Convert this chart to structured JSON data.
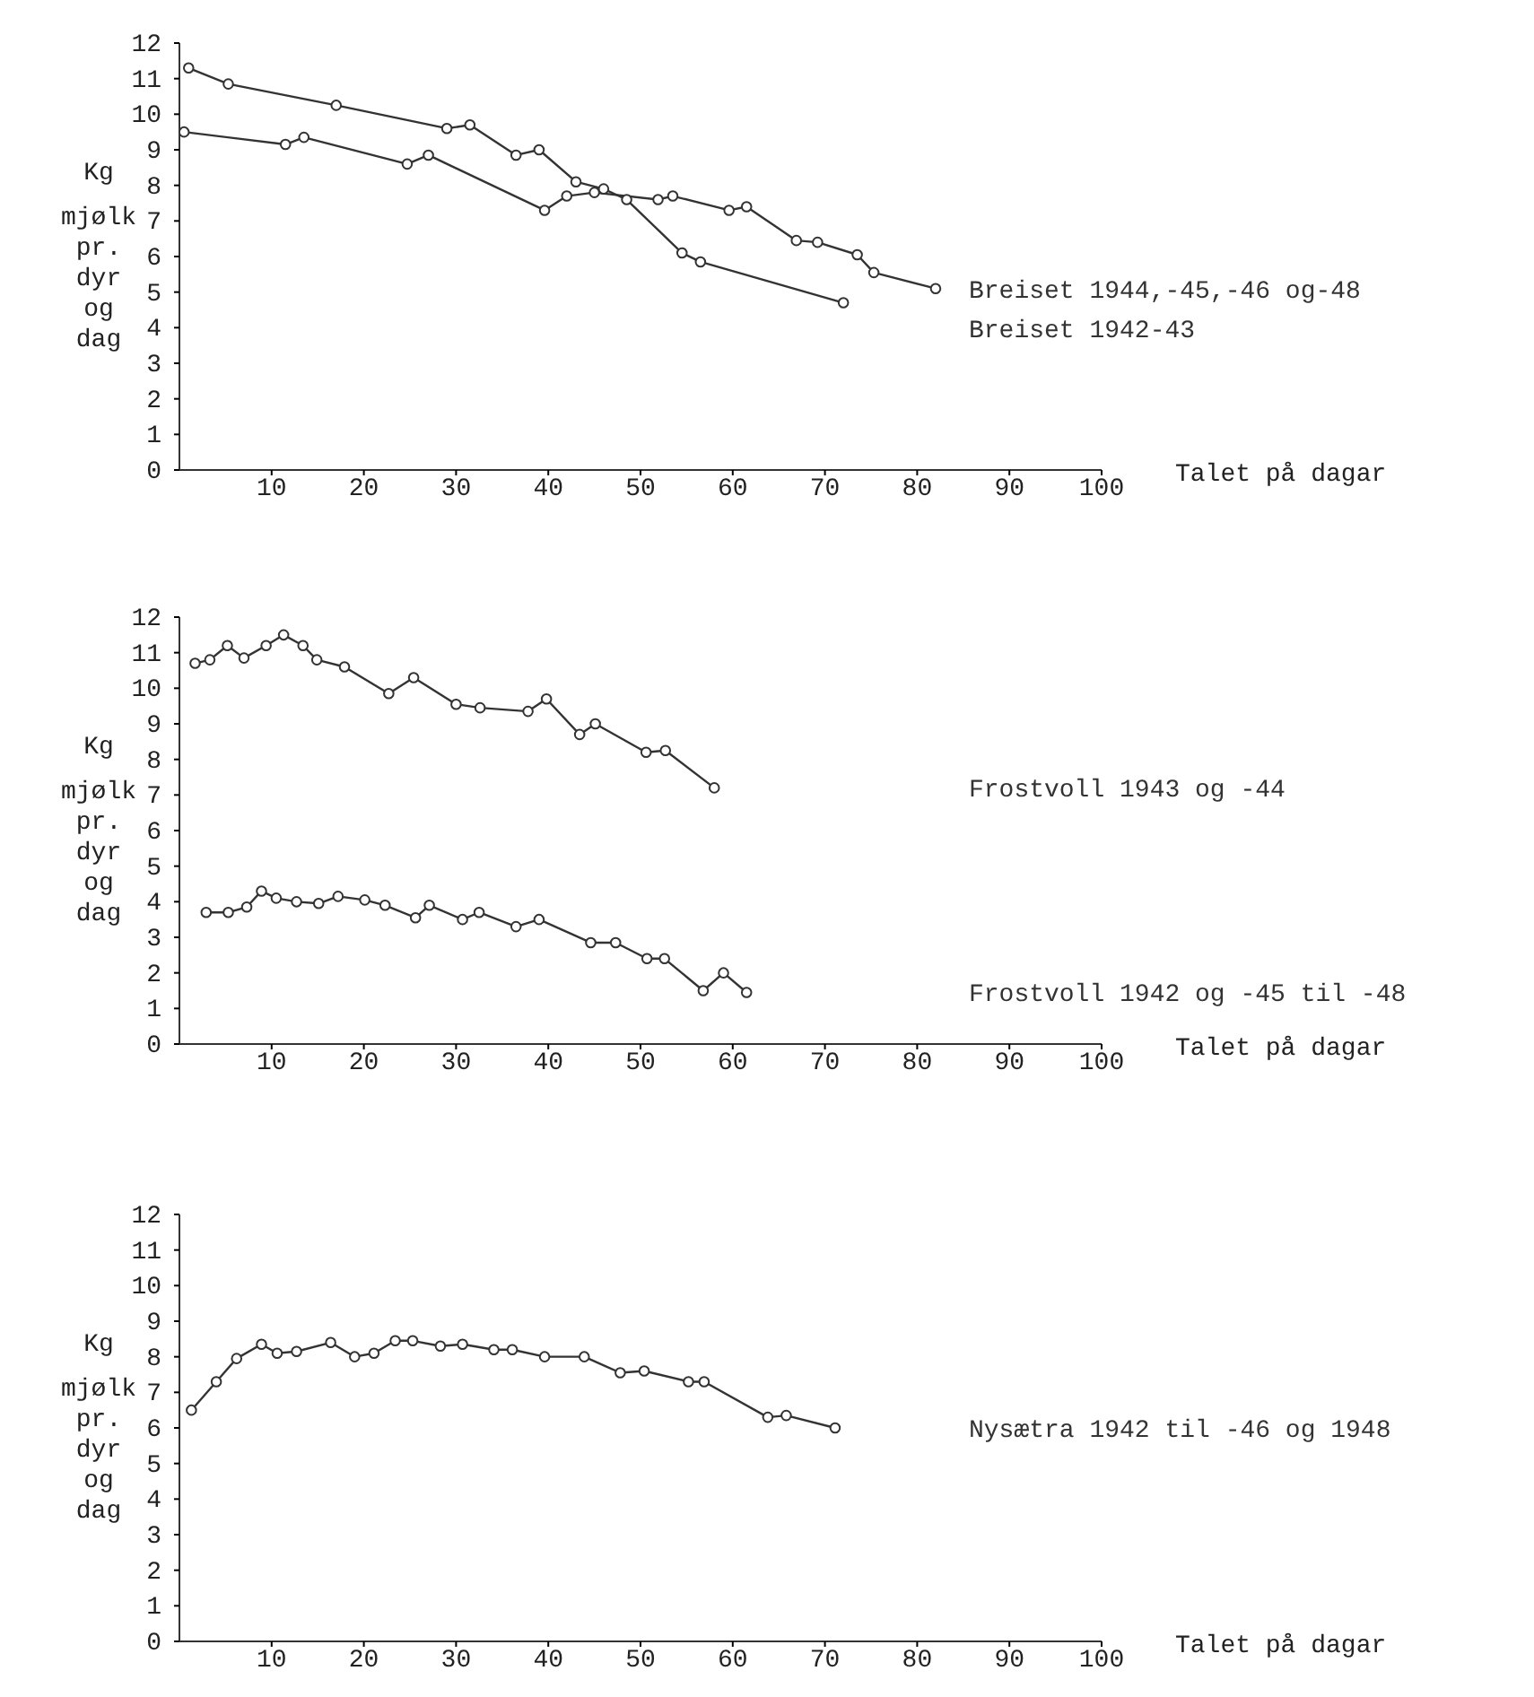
{
  "chart_data": [
    {
      "type": "line",
      "ylabel": "Kg mjølk pr. dyr og dag",
      "xlabel": "Talet på dagar",
      "xlim": [
        0,
        100
      ],
      "xticks": [
        10,
        20,
        30,
        40,
        50,
        60,
        70,
        80,
        90,
        100
      ],
      "ylim": [
        0,
        12
      ],
      "yticks": [
        0,
        1,
        2,
        3,
        4,
        5,
        6,
        7,
        8,
        9,
        10,
        11,
        12
      ],
      "grid": false,
      "legend": false,
      "marker": "circle",
      "line_style": "solid",
      "series": [
        {
          "name": "Breiset 1944,-45,-46 og-48",
          "color": "#333333",
          "x": [
            0.5,
            11.5,
            13.5,
            24.7,
            27,
            39.6,
            42,
            45,
            51.9,
            53.5,
            59.6,
            61.5,
            66.9,
            69.2,
            73.5,
            75.3,
            82
          ],
          "values": [
            9.5,
            9.15,
            9.35,
            8.6,
            8.85,
            7.3,
            7.7,
            7.8,
            7.6,
            7.7,
            7.3,
            7.4,
            6.45,
            6.4,
            6.05,
            5.55,
            5.1
          ]
        },
        {
          "name": "Breiset 1942-43",
          "color": "#333333",
          "x": [
            1,
            5.3,
            17,
            29,
            31.5,
            36.5,
            39,
            43,
            46,
            48.5,
            54.5,
            56.5,
            72
          ],
          "values": [
            11.3,
            10.85,
            10.25,
            9.6,
            9.7,
            8.85,
            9.0,
            8.1,
            7.9,
            7.6,
            6.1,
            5.85,
            4.7
          ]
        }
      ]
    },
    {
      "type": "line",
      "ylabel": "Kg mjølk pr. dyr og dag",
      "xlabel": "Talet på dagar",
      "xlim": [
        0,
        100
      ],
      "xticks": [
        10,
        20,
        30,
        40,
        50,
        60,
        70,
        80,
        90,
        100
      ],
      "ylim": [
        0,
        12
      ],
      "yticks": [
        0,
        1,
        2,
        3,
        4,
        5,
        6,
        7,
        8,
        9,
        10,
        11,
        12
      ],
      "grid": false,
      "legend": false,
      "marker": "circle",
      "line_style": "solid",
      "series": [
        {
          "name": "Frostvoll 1943 og -44",
          "color": "#333333",
          "x": [
            1.7,
            3.3,
            5.2,
            7,
            9.4,
            11.3,
            13.4,
            14.9,
            17.9,
            22.7,
            25.4,
            30,
            32.6,
            37.8,
            39.8,
            43.4,
            45.1,
            50.6,
            52.7,
            58
          ],
          "values": [
            10.7,
            10.8,
            11.2,
            10.85,
            11.2,
            11.5,
            11.2,
            10.8,
            10.6,
            9.85,
            10.3,
            9.55,
            9.45,
            9.35,
            9.7,
            8.7,
            9.0,
            8.2,
            8.25,
            7.2
          ]
        },
        {
          "name": "Frostvoll 1942 og -45 til -48",
          "color": "#333333",
          "x": [
            2.9,
            5.3,
            7.3,
            8.9,
            10.5,
            12.7,
            15.1,
            17.2,
            20.1,
            22.3,
            25.6,
            27.1,
            30.7,
            32.5,
            36.5,
            39,
            44.6,
            47.3,
            50.7,
            52.6,
            56.8,
            59,
            61.5
          ],
          "values": [
            3.7,
            3.7,
            3.85,
            4.3,
            4.1,
            4.0,
            3.95,
            4.15,
            4.05,
            3.9,
            3.55,
            3.9,
            3.5,
            3.7,
            3.3,
            3.5,
            2.85,
            2.85,
            2.4,
            2.4,
            1.5,
            2.0,
            1.45
          ]
        }
      ]
    },
    {
      "type": "line",
      "ylabel": "Kg mjølk pr. dyr og dag",
      "xlabel": "Talet på dagar",
      "xlim": [
        0,
        100
      ],
      "xticks": [
        10,
        20,
        30,
        40,
        50,
        60,
        70,
        80,
        90,
        100
      ],
      "ylim": [
        0,
        12
      ],
      "yticks": [
        0,
        1,
        2,
        3,
        4,
        5,
        6,
        7,
        8,
        9,
        10,
        11,
        12
      ],
      "grid": false,
      "legend": false,
      "marker": "circle",
      "line_style": "solid",
      "series": [
        {
          "name": "Nysætra 1942 til -46 og 1948",
          "color": "#333333",
          "x": [
            1.3,
            4,
            6.2,
            8.9,
            10.6,
            12.7,
            16.4,
            19,
            21.1,
            23.4,
            25.3,
            28.3,
            30.7,
            34.1,
            36.1,
            39.6,
            43.9,
            47.8,
            50.4,
            55.2,
            56.9,
            63.8,
            65.8,
            71.1
          ],
          "values": [
            6.5,
            7.3,
            7.95,
            8.35,
            8.1,
            8.15,
            8.4,
            8.0,
            8.1,
            8.45,
            8.45,
            8.3,
            8.35,
            8.2,
            8.2,
            8.0,
            8.0,
            7.55,
            7.6,
            7.3,
            7.3,
            6.3,
            6.35,
            6.0
          ]
        }
      ]
    }
  ]
}
